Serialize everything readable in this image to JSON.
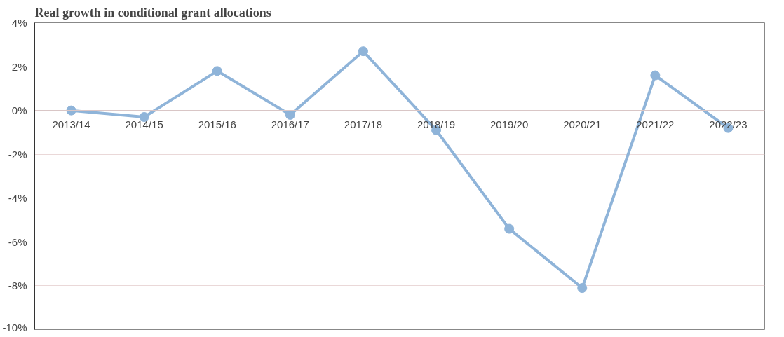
{
  "chart_data": {
    "type": "line",
    "title": "Real growth in conditional grant allocations",
    "categories": [
      "2013/14",
      "2014/15",
      "2015/16",
      "2016/17",
      "2017/18",
      "2018/19",
      "2019/20",
      "2020/21",
      "2021/22",
      "2022/23"
    ],
    "series": [
      {
        "color": "#8fb4d9",
        "values": [
          0,
          -0.3,
          1.8,
          -0.2,
          2.7,
          -0.9,
          -5.4,
          -8.1,
          1.6,
          -0.8
        ]
      }
    ],
    "ylim": [
      -10,
      4
    ],
    "yticks": [
      {
        "value": -10,
        "label": "-10%"
      },
      {
        "value": -8,
        "label": "-8%"
      },
      {
        "value": -6,
        "label": "-6%"
      },
      {
        "value": -4,
        "label": "-4%"
      },
      {
        "value": -2,
        "label": "-2%"
      },
      {
        "value": 0,
        "label": "0%"
      },
      {
        "value": 2,
        "label": "2%"
      },
      {
        "value": 4,
        "label": "4%"
      }
    ],
    "grid": "y",
    "marker": "circle",
    "line_style": "solid"
  }
}
